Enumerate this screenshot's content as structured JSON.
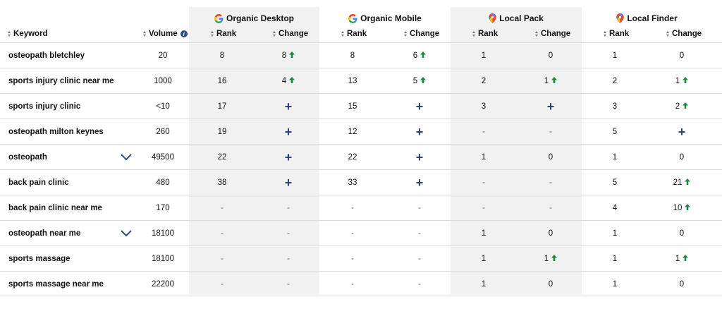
{
  "groups": {
    "organic_desktop": "Organic Desktop",
    "organic_mobile": "Organic Mobile",
    "local_pack": "Local Pack",
    "local_finder": "Local Finder"
  },
  "headers": {
    "keyword": "Keyword",
    "volume": "Volume",
    "rank": "Rank",
    "change": "Change"
  },
  "colors": {
    "up_arrow": "#1a8a3c",
    "plus": "#2f3f7f",
    "chevron": "#2f4c8a"
  },
  "rows": [
    {
      "keyword": "osteopath bletchley",
      "volume": "20",
      "expandable": false,
      "od_rank": "8",
      "od_change": "8",
      "od_up": true,
      "od_plus": false,
      "om_rank": "8",
      "om_change": "6",
      "om_up": true,
      "om_plus": false,
      "lp_rank": "1",
      "lp_change": "0",
      "lp_up": false,
      "lp_plus": false,
      "lf_rank": "1",
      "lf_change": "0",
      "lf_up": false,
      "lf_plus": false
    },
    {
      "keyword": "sports injury clinic near me",
      "volume": "1000",
      "expandable": false,
      "od_rank": "16",
      "od_change": "4",
      "od_up": true,
      "od_plus": false,
      "om_rank": "13",
      "om_change": "5",
      "om_up": true,
      "om_plus": false,
      "lp_rank": "2",
      "lp_change": "1",
      "lp_up": true,
      "lp_plus": false,
      "lf_rank": "2",
      "lf_change": "1",
      "lf_up": true,
      "lf_plus": false
    },
    {
      "keyword": "sports injury clinic",
      "volume": "<10",
      "expandable": false,
      "od_rank": "17",
      "od_change": "",
      "od_up": false,
      "od_plus": true,
      "om_rank": "15",
      "om_change": "",
      "om_up": false,
      "om_plus": true,
      "lp_rank": "3",
      "lp_change": "",
      "lp_up": false,
      "lp_plus": true,
      "lf_rank": "3",
      "lf_change": "2",
      "lf_up": true,
      "lf_plus": false
    },
    {
      "keyword": "osteopath milton keynes",
      "volume": "260",
      "expandable": false,
      "od_rank": "19",
      "od_change": "",
      "od_up": false,
      "od_plus": true,
      "om_rank": "12",
      "om_change": "",
      "om_up": false,
      "om_plus": true,
      "lp_rank": "-",
      "lp_change": "-",
      "lp_up": false,
      "lp_plus": false,
      "lf_rank": "5",
      "lf_change": "",
      "lf_up": false,
      "lf_plus": true
    },
    {
      "keyword": "osteopath",
      "volume": "49500",
      "expandable": true,
      "od_rank": "22",
      "od_change": "",
      "od_up": false,
      "od_plus": true,
      "om_rank": "22",
      "om_change": "",
      "om_up": false,
      "om_plus": true,
      "lp_rank": "1",
      "lp_change": "0",
      "lp_up": false,
      "lp_plus": false,
      "lf_rank": "1",
      "lf_change": "0",
      "lf_up": false,
      "lf_plus": false
    },
    {
      "keyword": "back pain clinic",
      "volume": "480",
      "expandable": false,
      "od_rank": "38",
      "od_change": "",
      "od_up": false,
      "od_plus": true,
      "om_rank": "33",
      "om_change": "",
      "om_up": false,
      "om_plus": true,
      "lp_rank": "-",
      "lp_change": "-",
      "lp_up": false,
      "lp_plus": false,
      "lf_rank": "5",
      "lf_change": "21",
      "lf_up": true,
      "lf_plus": false
    },
    {
      "keyword": "back pain clinic near me",
      "volume": "170",
      "expandable": false,
      "od_rank": "-",
      "od_change": "-",
      "od_up": false,
      "od_plus": false,
      "om_rank": "-",
      "om_change": "-",
      "om_up": false,
      "om_plus": false,
      "lp_rank": "-",
      "lp_change": "-",
      "lp_up": false,
      "lp_plus": false,
      "lf_rank": "4",
      "lf_change": "10",
      "lf_up": true,
      "lf_plus": false
    },
    {
      "keyword": "osteopath near me",
      "volume": "18100",
      "expandable": true,
      "od_rank": "-",
      "od_change": "-",
      "od_up": false,
      "od_plus": false,
      "om_rank": "-",
      "om_change": "-",
      "om_up": false,
      "om_plus": false,
      "lp_rank": "1",
      "lp_change": "0",
      "lp_up": false,
      "lp_plus": false,
      "lf_rank": "1",
      "lf_change": "0",
      "lf_up": false,
      "lf_plus": false
    },
    {
      "keyword": "sports massage",
      "volume": "18100",
      "expandable": false,
      "od_rank": "-",
      "od_change": "-",
      "od_up": false,
      "od_plus": false,
      "om_rank": "-",
      "om_change": "-",
      "om_up": false,
      "om_plus": false,
      "lp_rank": "1",
      "lp_change": "1",
      "lp_up": true,
      "lp_plus": false,
      "lf_rank": "1",
      "lf_change": "1",
      "lf_up": true,
      "lf_plus": false
    },
    {
      "keyword": "sports massage near me",
      "volume": "22200",
      "expandable": false,
      "od_rank": "-",
      "od_change": "-",
      "od_up": false,
      "od_plus": false,
      "om_rank": "-",
      "om_change": "-",
      "om_up": false,
      "om_plus": false,
      "lp_rank": "1",
      "lp_change": "0",
      "lp_up": false,
      "lp_plus": false,
      "lf_rank": "1",
      "lf_change": "0",
      "lf_up": false,
      "lf_plus": false
    }
  ]
}
